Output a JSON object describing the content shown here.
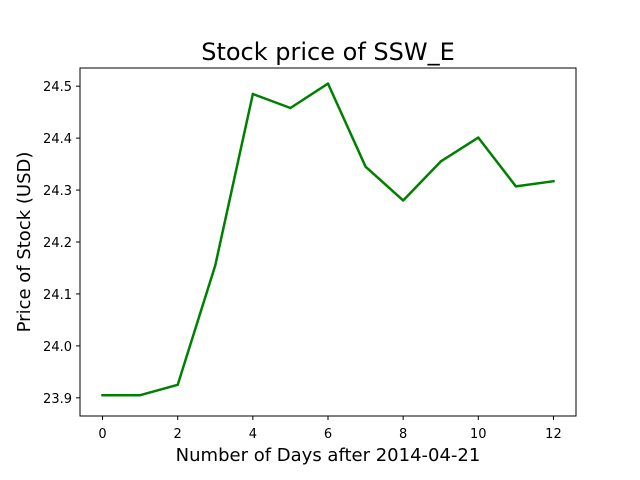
{
  "chart_data": {
    "type": "line",
    "title": "Stock price of SSW_E",
    "xlabel": "Number of Days after 2014-04-21",
    "ylabel": "Price of Stock (USD)",
    "x": [
      0,
      1,
      2,
      3,
      4,
      5,
      6,
      7,
      8,
      9,
      10,
      11,
      12
    ],
    "series": [
      {
        "values": [
          23.905,
          23.905,
          23.925,
          24.155,
          24.485,
          24.458,
          24.505,
          24.345,
          24.28,
          24.355,
          24.401,
          24.307,
          24.317
        ],
        "color": "#008000"
      }
    ],
    "xlim": [
      -0.6,
      12.6
    ],
    "ylim": [
      23.865,
      24.535
    ],
    "xticks": [
      0,
      2,
      4,
      6,
      8,
      10,
      12
    ],
    "xtick_labels": [
      "0",
      "2",
      "4",
      "6",
      "8",
      "10",
      "12"
    ],
    "yticks": [
      23.9,
      24.0,
      24.1,
      24.2,
      24.3,
      24.4,
      24.5
    ],
    "ytick_labels": [
      "23.9",
      "24.0",
      "24.1",
      "24.2",
      "24.3",
      "24.4",
      "24.5"
    ],
    "grid": false,
    "legend": false
  }
}
